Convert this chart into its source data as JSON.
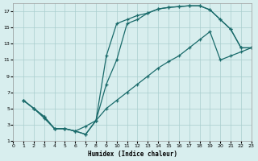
{
  "xlabel": "Humidex (Indice chaleur)",
  "bg_color": "#d8eeee",
  "grid_color": "#aacece",
  "line_color": "#1a6b6b",
  "xlim": [
    0,
    23
  ],
  "ylim": [
    1,
    18
  ],
  "xticks": [
    0,
    1,
    2,
    3,
    4,
    5,
    6,
    7,
    8,
    9,
    10,
    11,
    12,
    13,
    14,
    15,
    16,
    17,
    18,
    19,
    20,
    21,
    22,
    23
  ],
  "yticks": [
    1,
    3,
    5,
    7,
    9,
    11,
    13,
    15,
    17
  ],
  "curves": [
    {
      "x": [
        1,
        2,
        3,
        4,
        5,
        6,
        7,
        8,
        9,
        10,
        11,
        12,
        13,
        14,
        15,
        16,
        17,
        18,
        19,
        20,
        21,
        22,
        23
      ],
      "y": [
        6,
        5,
        4,
        2.5,
        2.5,
        2.2,
        1.8,
        3.5,
        8,
        11,
        15.5,
        16,
        16.8,
        17.3,
        17.5,
        17.6,
        17.7,
        17.7,
        17.2,
        16,
        14.8,
        12.5,
        12.5
      ]
    },
    {
      "x": [
        1,
        2,
        3,
        4,
        5,
        6,
        7,
        8,
        9,
        10,
        11,
        12,
        13,
        14,
        15,
        16,
        17,
        18,
        19,
        20,
        21,
        22,
        23
      ],
      "y": [
        6,
        5,
        4,
        2.5,
        2.5,
        2.2,
        1.8,
        3.5,
        11.5,
        15.5,
        16,
        16.5,
        16.8,
        17.3,
        17.5,
        17.6,
        17.7,
        17.7,
        17.2,
        16,
        14.8,
        12.5,
        12.5
      ]
    },
    {
      "x": [
        1,
        2,
        3,
        4,
        5,
        6,
        7,
        8,
        9,
        10,
        11,
        12,
        13,
        14,
        15,
        16,
        17,
        18,
        19,
        20,
        21,
        22,
        23
      ],
      "y": [
        6,
        5,
        3.8,
        2.5,
        2.5,
        2.2,
        2.8,
        3.5,
        5,
        6,
        7,
        8,
        9,
        10,
        10.8,
        11.5,
        12.5,
        13.5,
        14.5,
        11,
        11.5,
        12,
        12.5
      ]
    }
  ]
}
